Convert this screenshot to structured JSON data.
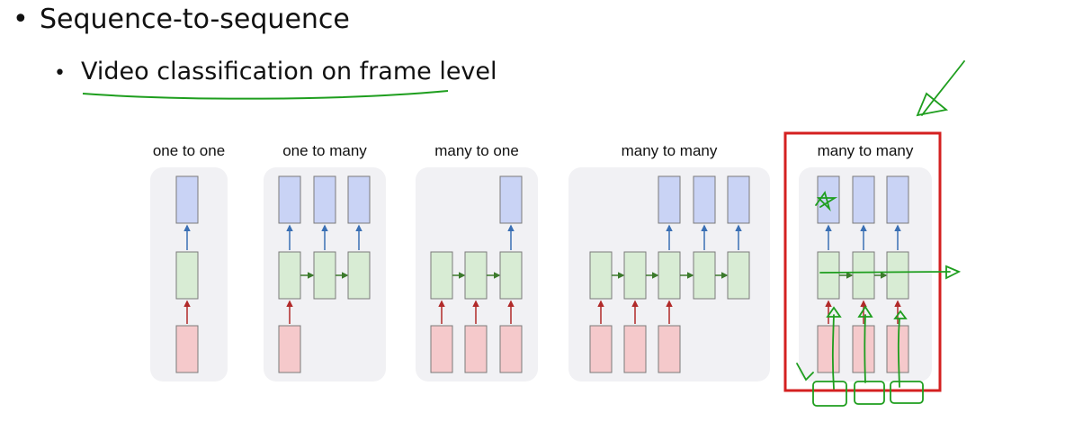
{
  "slide": {
    "title": "Sequence-to-sequence",
    "subtitle": "Video classification on frame level",
    "bullet": "•"
  },
  "colors": {
    "panel_bg": "#f1f1f4",
    "output_fill": "#c9d3f5",
    "hidden_fill": "#d8ecd4",
    "input_fill": "#f5c9cb",
    "box_stroke": "#7a7a7a",
    "up_arrow_out": "#3a6fb4",
    "up_arrow_in": "#b12a2a",
    "recurrent_arrow": "#3c7a2c",
    "highlight": "#d42020",
    "annotation": "#1e9e1e"
  },
  "diagrams": [
    {
      "label": "one to one",
      "inputs": [
        0
      ],
      "outputs": [
        0
      ],
      "cols": 1,
      "recurrent": false
    },
    {
      "label": "one to many",
      "inputs": [
        0
      ],
      "outputs": [
        0,
        1,
        2
      ],
      "cols": 3,
      "recurrent": true
    },
    {
      "label": "many to one",
      "inputs": [
        0,
        1,
        2
      ],
      "outputs": [
        2
      ],
      "cols": 3,
      "recurrent": true
    },
    {
      "label": "many to many",
      "inputs": [
        0,
        1,
        2
      ],
      "outputs": [
        2,
        3,
        4
      ],
      "cols": 5,
      "recurrent": true
    },
    {
      "label": "many to many",
      "inputs": [
        0,
        1,
        2
      ],
      "outputs": [
        0,
        1,
        2
      ],
      "cols": 3,
      "recurrent": true,
      "highlighted": true
    }
  ]
}
